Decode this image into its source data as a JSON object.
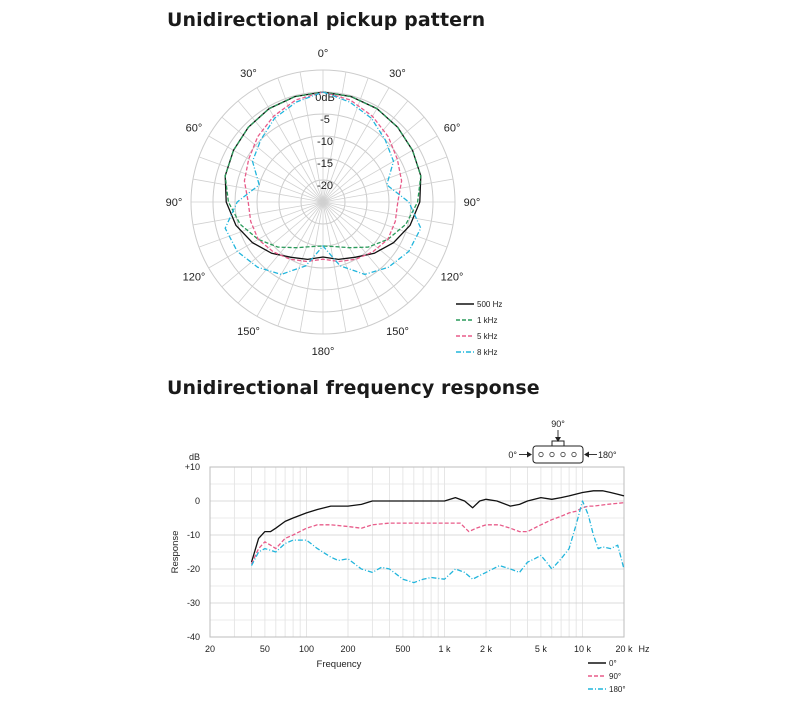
{
  "polar_title": "Unidirectional pickup pattern",
  "freq_title": "Unidirectional frequency response",
  "colors": {
    "0": "#111111",
    "1": "#2a9a5a",
    "2": "#e85c8a",
    "3": "#21b5dc"
  },
  "chart_data": [
    {
      "type": "line",
      "coordinate_system": "polar",
      "title": "Unidirectional pickup pattern",
      "angle_labels": [
        "0°",
        "30°",
        "30°",
        "60°",
        "60°",
        "90°",
        "90°",
        "120°",
        "120°",
        "150°",
        "150°",
        "180°"
      ],
      "ring_labels": [
        "0dB",
        "-5",
        "-10",
        "-15",
        "-20"
      ],
      "ring_values_db": [
        0,
        -5,
        -10,
        -15,
        -20
      ],
      "r_range_db": [
        -25,
        0
      ],
      "angle_grid_step_deg": 10,
      "legend_position": "bottom-right",
      "angles_deg": [
        0,
        15,
        30,
        45,
        60,
        75,
        90,
        105,
        120,
        135,
        150,
        165,
        180,
        195,
        210,
        225,
        240,
        255,
        270,
        285,
        300,
        315,
        330,
        345
      ],
      "series": [
        {
          "name": "500 Hz",
          "style": "solid",
          "color": "#111111",
          "values_db": [
            0,
            -0.2,
            -0.5,
            -1,
            -1.5,
            -2,
            -3,
            -4.5,
            -6.5,
            -8.5,
            -10.5,
            -11.5,
            -12.5,
            -11.5,
            -10.5,
            -8.5,
            -6.5,
            -4.5,
            -3,
            -2,
            -1.5,
            -1,
            -0.5,
            -0.2
          ]
        },
        {
          "name": "1 kHz",
          "style": "dashed",
          "color": "#2a9a5a",
          "values_db": [
            0,
            -0.2,
            -0.5,
            -1,
            -1.5,
            -2,
            -3.5,
            -5.5,
            -8,
            -10.5,
            -13,
            -14.5,
            -15,
            -14.5,
            -13,
            -10.5,
            -8,
            -5.5,
            -3.5,
            -2,
            -1.5,
            -1,
            -0.5,
            -0.2
          ]
        },
        {
          "name": "5 kHz",
          "style": "dashed",
          "color": "#e85c8a",
          "values_db": [
            0,
            -1,
            -2.5,
            -4,
            -5.5,
            -6.5,
            -8,
            -8,
            -8,
            -9,
            -10,
            -11,
            -12,
            -11,
            -10,
            -9,
            -8,
            -8,
            -8,
            -6.5,
            -5.5,
            -4,
            -2.5,
            -1
          ]
        },
        {
          "name": "8 kHz",
          "style": "dashdot",
          "color": "#21b5dc",
          "values_db": [
            0,
            -1.5,
            -3,
            -5,
            -6.5,
            -10,
            -5.5,
            -2,
            -2.5,
            -4,
            -6,
            -10,
            -15,
            -10,
            -6,
            -4,
            -2.5,
            -2,
            -5.5,
            -10,
            -6.5,
            -5,
            -3,
            -1.5
          ]
        }
      ]
    },
    {
      "type": "line",
      "title": "Unidirectional frequency response",
      "xlabel": "Frequency",
      "ylabel": "Response",
      "x_unit": "Hz",
      "y_unit": "dB",
      "x_scale": "log",
      "xlim": [
        20,
        20000
      ],
      "ylim": [
        -40,
        10
      ],
      "x_ticks": [
        20,
        50,
        100,
        200,
        500,
        1000,
        2000,
        5000,
        10000,
        20000
      ],
      "x_tick_labels": [
        "20",
        "50",
        "100",
        "200",
        "500",
        "1 k",
        "2 k",
        "5 k",
        "10 k",
        "20 k"
      ],
      "y_ticks": [
        10,
        0,
        -10,
        -20,
        -30,
        -40
      ],
      "y_tick_labels": [
        "+10",
        "0",
        "-10",
        "-20",
        "-30",
        "-40"
      ],
      "grid": true,
      "legend_position": "bottom-right",
      "orientation_labels": {
        "front": "0°",
        "side": "90°",
        "rear": "180°"
      },
      "series": [
        {
          "name": "0°",
          "style": "solid",
          "color": "#111111",
          "x": [
            40,
            45,
            50,
            55,
            60,
            70,
            80,
            100,
            120,
            150,
            200,
            250,
            300,
            400,
            500,
            700,
            1000,
            1200,
            1400,
            1600,
            1800,
            2000,
            2400,
            3000,
            3500,
            4000,
            5000,
            6000,
            7000,
            8000,
            10000,
            12000,
            14000,
            16000,
            18000,
            20000
          ],
          "y": [
            -18,
            -11,
            -9,
            -9,
            -8,
            -6,
            -5,
            -3.5,
            -2.5,
            -1.5,
            -1.5,
            -1,
            0,
            0,
            0,
            0,
            0,
            1,
            0,
            -2,
            0,
            0.5,
            0,
            -1.5,
            -1,
            0,
            1,
            0.5,
            1,
            1.5,
            2.5,
            3,
            3,
            2.5,
            2,
            1.5
          ]
        },
        {
          "name": "90°",
          "style": "dashed",
          "color": "#e85c8a",
          "x": [
            40,
            45,
            50,
            55,
            60,
            70,
            80,
            100,
            120,
            150,
            200,
            250,
            300,
            400,
            500,
            700,
            1000,
            1300,
            1500,
            1700,
            2000,
            2500,
            3000,
            3500,
            4000,
            5000,
            6000,
            7000,
            8000,
            9000,
            10000,
            11000,
            12000,
            15000,
            20000
          ],
          "y": [
            -18.5,
            -14,
            -12,
            -13,
            -14,
            -11,
            -10,
            -8,
            -7,
            -7,
            -7.5,
            -8,
            -7,
            -6.5,
            -6.5,
            -6.5,
            -6.5,
            -6.5,
            -9,
            -8,
            -7,
            -7,
            -8,
            -9,
            -9,
            -7,
            -5.5,
            -4.5,
            -3.5,
            -3,
            -2,
            -1.5,
            -1.5,
            -1,
            -0.5
          ]
        },
        {
          "name": "180°",
          "style": "dashdot",
          "color": "#21b5dc",
          "x": [
            40,
            45,
            50,
            55,
            60,
            70,
            80,
            100,
            120,
            150,
            170,
            200,
            250,
            300,
            350,
            400,
            500,
            600,
            700,
            800,
            1000,
            1200,
            1400,
            1600,
            2000,
            2500,
            3000,
            3500,
            4000,
            4500,
            5000,
            5500,
            6000,
            7000,
            8000,
            9000,
            10000,
            11000,
            12000,
            13000,
            14000,
            16000,
            18000,
            20000
          ],
          "y": [
            -19,
            -15,
            -14,
            -14.5,
            -15,
            -12.5,
            -11.5,
            -11.5,
            -14,
            -16.5,
            -17.5,
            -17,
            -20,
            -21,
            -19.5,
            -20,
            -23,
            -24,
            -23,
            -22.5,
            -23,
            -20,
            -21,
            -23,
            -21,
            -19,
            -20,
            -21,
            -18,
            -17,
            -16,
            -18,
            -20,
            -17,
            -14,
            -7,
            0,
            -4,
            -10,
            -14,
            -13.5,
            -14,
            -13,
            -20
          ]
        }
      ]
    }
  ]
}
